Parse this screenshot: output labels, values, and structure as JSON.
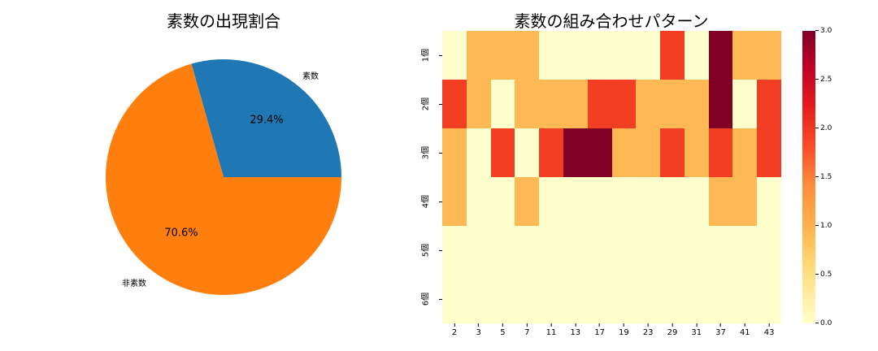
{
  "pie_chart": {
    "title": "素数の出現割合",
    "slices": [
      {
        "label": "素数",
        "pct_label": "29.4%",
        "color": "#1f77b4"
      },
      {
        "label": "非素数",
        "pct_label": "70.6%",
        "color": "#ff7f0e"
      }
    ]
  },
  "heatmap": {
    "title": "素数の組み合わせパターン",
    "x_labels": [
      "2",
      "3",
      "5",
      "7",
      "11",
      "13",
      "17",
      "19",
      "23",
      "29",
      "31",
      "37",
      "41",
      "43"
    ],
    "y_labels": [
      "1個",
      "2個",
      "3個",
      "4個",
      "5個",
      "6個"
    ],
    "colorbar_ticks": [
      "0.0",
      "0.5",
      "1.0",
      "1.5",
      "2.0",
      "2.5",
      "3.0"
    ],
    "color_scale": [
      "#ffffcc",
      "#feb954",
      "#f23f23",
      "#800026"
    ]
  },
  "chart_data": [
    {
      "type": "pie",
      "title": "素数の出現割合",
      "categories": [
        "素数",
        "非素数"
      ],
      "values": [
        29.4,
        70.6
      ],
      "colors": [
        "#1f77b4",
        "#ff7f0e"
      ],
      "start_angle": 0
    },
    {
      "type": "heatmap",
      "title": "素数の組み合わせパターン",
      "x": [
        "2",
        "3",
        "5",
        "7",
        "11",
        "13",
        "17",
        "19",
        "23",
        "29",
        "31",
        "37",
        "41",
        "43"
      ],
      "y": [
        "1個",
        "2個",
        "3個",
        "4個",
        "5個",
        "6個"
      ],
      "values": [
        [
          0,
          1,
          1,
          1,
          0,
          0,
          0,
          0,
          0,
          2,
          0,
          3,
          1,
          1
        ],
        [
          2,
          1,
          0,
          1,
          1,
          1,
          2,
          2,
          1,
          1,
          1,
          3,
          0,
          2
        ],
        [
          1,
          0,
          2,
          0,
          2,
          3,
          3,
          1,
          1,
          2,
          1,
          2,
          1,
          2
        ],
        [
          1,
          0,
          0,
          1,
          0,
          0,
          0,
          0,
          0,
          0,
          0,
          1,
          1,
          0
        ],
        [
          0,
          0,
          0,
          0,
          0,
          0,
          0,
          0,
          0,
          0,
          0,
          0,
          0,
          0
        ],
        [
          0,
          0,
          0,
          0,
          0,
          0,
          0,
          0,
          0,
          0,
          0,
          0,
          0,
          0
        ]
      ],
      "colormap": "YlOrRd",
      "vmin": 0,
      "vmax": 3,
      "colorbar_ticks": [
        0.0,
        0.5,
        1.0,
        1.5,
        2.0,
        2.5,
        3.0
      ]
    }
  ]
}
